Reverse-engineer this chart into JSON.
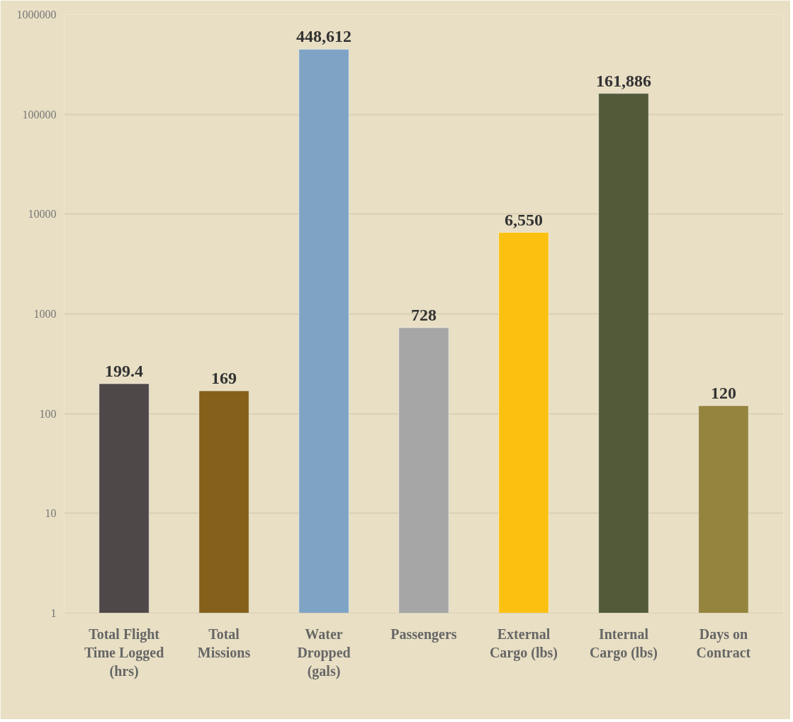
{
  "chart_data": {
    "type": "bar",
    "log": "y",
    "grid": "y",
    "categories": [
      "Total Flight Time Logged (hrs)",
      "Total Missions",
      "Water Dropped (gals)",
      "Passengers",
      "External Cargo (lbs)",
      "Internal Cargo (lbs)",
      "Days on Contract"
    ],
    "values": [
      199.4,
      169,
      448612,
      728,
      6550,
      161886,
      120
    ],
    "value_labels": [
      "199.4",
      "169",
      "448,612",
      "728",
      "6,550",
      "161,886",
      "120"
    ],
    "colors": [
      "#4f4848",
      "#85601a",
      "#7fa3c4",
      "#a6a6a6",
      "#fcc010",
      "#525a3a",
      "#94843e"
    ],
    "ylim": [
      1,
      1000000
    ],
    "yticks": [
      1,
      10,
      100,
      1000,
      10000,
      100000,
      1000000
    ]
  }
}
